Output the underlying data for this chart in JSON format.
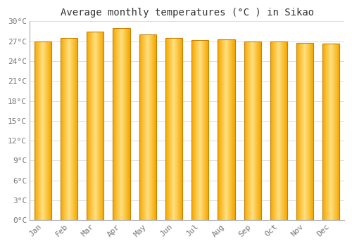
{
  "title": "Average monthly temperatures (°C ) in Sikao",
  "months": [
    "Jan",
    "Feb",
    "Mar",
    "Apr",
    "May",
    "Jun",
    "Jul",
    "Aug",
    "Sep",
    "Oct",
    "Nov",
    "Dec"
  ],
  "temperatures": [
    27.0,
    27.5,
    28.5,
    29.0,
    28.0,
    27.5,
    27.2,
    27.3,
    27.0,
    27.0,
    26.8,
    26.7
  ],
  "ylim": [
    0,
    30
  ],
  "yticks": [
    0,
    3,
    6,
    9,
    12,
    15,
    18,
    21,
    24,
    27,
    30
  ],
  "grid_color": "#dddddd",
  "background_color": "#ffffff",
  "plot_bg_color": "#f8f8f8",
  "title_fontsize": 10,
  "tick_fontsize": 8,
  "bar_color_center": "#FFD966",
  "bar_color_edge": "#F5A800",
  "bar_edge_outline": "#C88000",
  "bar_width": 0.65
}
